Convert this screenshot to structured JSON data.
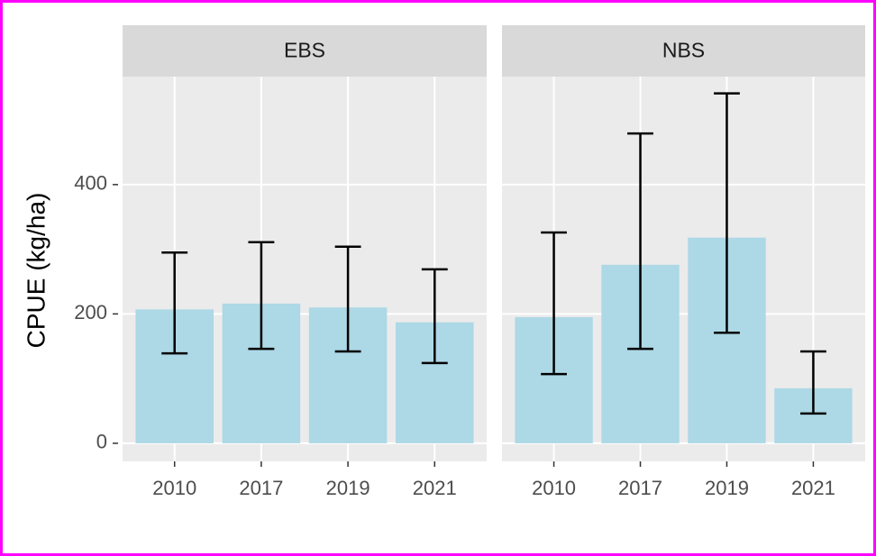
{
  "chart_data": {
    "type": "bar",
    "y_label": "CPUE (kg/ha)",
    "color": "#add8e6",
    "grid": true,
    "ylim": [
      -28,
      567
    ],
    "yticks": [
      0,
      200,
      400
    ],
    "panels": [
      {
        "title": "EBS",
        "categories": [
          "2010",
          "2017",
          "2019",
          "2021"
        ],
        "values": [
          207,
          216,
          210,
          187
        ],
        "error_low": [
          139,
          146,
          142,
          124
        ],
        "error_high": [
          295,
          311,
          304,
          269
        ]
      },
      {
        "title": "NBS",
        "categories": [
          "2010",
          "2017",
          "2019",
          "2021"
        ],
        "values": [
          195,
          276,
          318,
          85
        ],
        "error_low": [
          107,
          146,
          171,
          46
        ],
        "error_high": [
          326,
          479,
          541,
          142
        ]
      }
    ]
  }
}
